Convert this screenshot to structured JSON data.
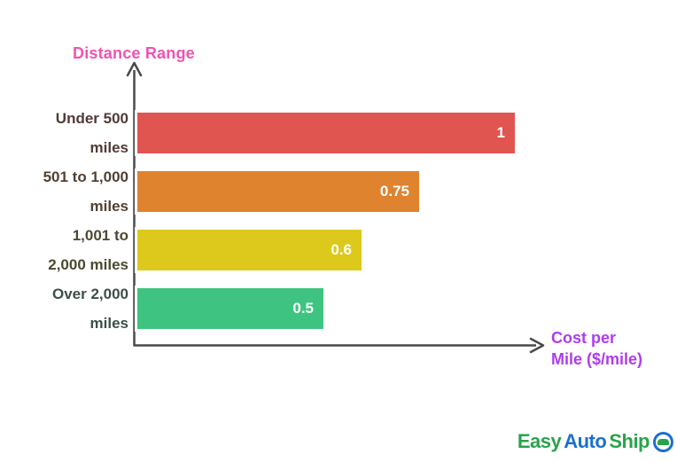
{
  "chart_data": {
    "type": "bar",
    "orientation": "horizontal",
    "title": "",
    "ylabel": "Distance Range",
    "xlabel": "Cost per Mile ($/mile)",
    "xlabel_lines": [
      "Cost per",
      "Mile ($/mile)"
    ],
    "xlim": [
      0,
      1
    ],
    "grid": false,
    "legend": "none",
    "categories": [
      "Under 500 miles",
      "501 to 1,000 miles",
      "1,001 to 2,000 miles",
      "Over 2,000 miles"
    ],
    "values": [
      1,
      0.75,
      0.6,
      0.5
    ],
    "value_labels": [
      "1",
      "0.75",
      "0.6",
      "0.5"
    ],
    "rows": [
      {
        "category": "Under 500 miles",
        "label_lines": [
          "Under 500",
          "miles"
        ],
        "value": 1,
        "value_label": "1",
        "bar_color": "#e15551",
        "label_color": "#513b37"
      },
      {
        "category": "501 to 1,000 miles",
        "label_lines": [
          "501 to 1,000",
          "miles"
        ],
        "value": 0.75,
        "value_label": "0.75",
        "bar_color": "#e0832f",
        "label_color": "#514134"
      },
      {
        "category": "1,001 to 2,000 miles",
        "label_lines": [
          "1,001 to",
          "2,000 miles"
        ],
        "value": 0.6,
        "value_label": "0.6",
        "bar_color": "#ddc91c",
        "label_color": "#4b4930"
      },
      {
        "category": "Over 2,000 miles",
        "label_lines": [
          "Over 2,000",
          "miles"
        ],
        "value": 0.5,
        "value_label": "0.5",
        "bar_color": "#3ec480",
        "label_color": "#3d4f47"
      }
    ]
  },
  "colors": {
    "axis": "#4a4a4a",
    "ylabel": "#f053b1",
    "xlabel": "#ae3cee",
    "bar_border": "#ffffff",
    "value_text": "#ffffff",
    "background": "#ffffff"
  },
  "logo": {
    "name": "EasyAutoShip",
    "icon": "car-circle-icon",
    "parts": [
      {
        "text": "Easy",
        "color": "#2aa34c"
      },
      {
        "text": "Auto",
        "color": "#1b6fd0"
      },
      {
        "text": "Ship",
        "color": "#2aa34c"
      }
    ]
  }
}
